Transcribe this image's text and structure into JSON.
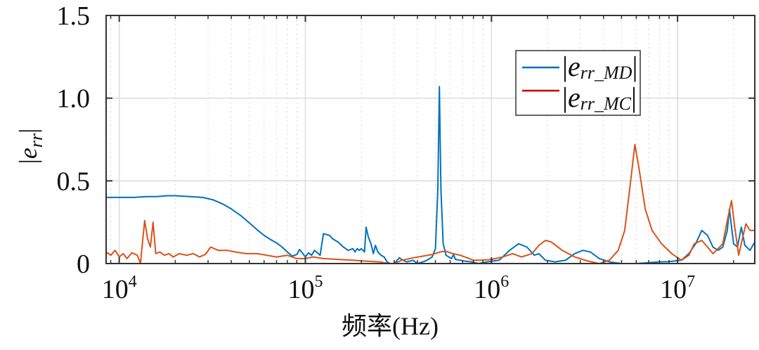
{
  "chart_data": {
    "type": "line",
    "title": "",
    "xlabel": "频率(Hz)",
    "ylabel": "|e_rr|",
    "xscale": "log",
    "xlim": [
      8500,
      26000000
    ],
    "ylim": [
      0,
      1.5
    ],
    "grid": true,
    "legend_position": "upper right (inset)",
    "x_ticks": [
      {
        "value": 10000,
        "base": "10",
        "exp": "4"
      },
      {
        "value": 100000,
        "base": "10",
        "exp": "5"
      },
      {
        "value": 1000000,
        "base": "10",
        "exp": "6"
      },
      {
        "value": 10000000,
        "base": "10",
        "exp": "7"
      }
    ],
    "y_ticks": [
      {
        "value": 0,
        "label": "0"
      },
      {
        "value": 0.5,
        "label": "0.5"
      },
      {
        "value": 1.0,
        "label": "1.0"
      },
      {
        "value": 1.5,
        "label": "1.5"
      }
    ],
    "series": [
      {
        "name": "|e_rr_MD|",
        "legend_main": "e",
        "legend_sub": "rr_MD",
        "color": "#0072BD",
        "points": [
          [
            8500,
            0.4
          ],
          [
            10000,
            0.4
          ],
          [
            12000,
            0.4
          ],
          [
            14000,
            0.405
          ],
          [
            16000,
            0.405
          ],
          [
            18000,
            0.41
          ],
          [
            20000,
            0.41
          ],
          [
            24000,
            0.405
          ],
          [
            28000,
            0.4
          ],
          [
            32000,
            0.385
          ],
          [
            36000,
            0.36
          ],
          [
            40000,
            0.33
          ],
          [
            45000,
            0.29
          ],
          [
            50000,
            0.245
          ],
          [
            55000,
            0.205
          ],
          [
            60000,
            0.17
          ],
          [
            65000,
            0.145
          ],
          [
            70000,
            0.125
          ],
          [
            75000,
            0.1
          ],
          [
            80000,
            0.07
          ],
          [
            85000,
            0.045
          ],
          [
            90000,
            0.055
          ],
          [
            93000,
            0.085
          ],
          [
            97000,
            0.06
          ],
          [
            100000,
            0.04
          ],
          [
            104000,
            0.065
          ],
          [
            108000,
            0.05
          ],
          [
            112000,
            0.08
          ],
          [
            116000,
            0.065
          ],
          [
            120000,
            0.05
          ],
          [
            125000,
            0.18
          ],
          [
            130000,
            0.175
          ],
          [
            135000,
            0.17
          ],
          [
            140000,
            0.15
          ],
          [
            145000,
            0.14
          ],
          [
            150000,
            0.13
          ],
          [
            160000,
            0.1
          ],
          [
            170000,
            0.08
          ],
          [
            180000,
            0.09
          ],
          [
            185000,
            0.07
          ],
          [
            190000,
            0.09
          ],
          [
            195000,
            0.08
          ],
          [
            200000,
            0.09
          ],
          [
            208000,
            0.07
          ],
          [
            212000,
            0.22
          ],
          [
            218000,
            0.16
          ],
          [
            225000,
            0.12
          ],
          [
            232000,
            0.06
          ],
          [
            238000,
            0.11
          ],
          [
            245000,
            0.07
          ],
          [
            255000,
            0.05
          ],
          [
            265000,
            0.04
          ],
          [
            275000,
            0.01
          ],
          [
            285000,
            0.0
          ],
          [
            300000,
            0.0
          ],
          [
            320000,
            0.035
          ],
          [
            335000,
            0.02
          ],
          [
            350000,
            0.01
          ],
          [
            380000,
            0.02
          ],
          [
            400000,
            0.0
          ],
          [
            430000,
            0.01
          ],
          [
            450000,
            0.02
          ],
          [
            480000,
            0.04
          ],
          [
            500000,
            0.09
          ],
          [
            515000,
            0.45
          ],
          [
            525000,
            1.07
          ],
          [
            535000,
            0.45
          ],
          [
            550000,
            0.12
          ],
          [
            570000,
            0.05
          ],
          [
            590000,
            0.04
          ],
          [
            610000,
            0.03
          ],
          [
            625000,
            0.055
          ],
          [
            640000,
            0.025
          ],
          [
            680000,
            0.02
          ],
          [
            720000,
            0.015
          ],
          [
            780000,
            0.01
          ],
          [
            850000,
            0.0
          ],
          [
            950000,
            0.01
          ],
          [
            1100000,
            0.02
          ],
          [
            1250000,
            0.08
          ],
          [
            1400000,
            0.12
          ],
          [
            1550000,
            0.1
          ],
          [
            1700000,
            0.05
          ],
          [
            1800000,
            0.06
          ],
          [
            1950000,
            0.02
          ],
          [
            2200000,
            0.01
          ],
          [
            2500000,
            0.02
          ],
          [
            2800000,
            0.06
          ],
          [
            3100000,
            0.08
          ],
          [
            3400000,
            0.07
          ],
          [
            3800000,
            0.03
          ],
          [
            4300000,
            0.01
          ],
          [
            5000000,
            0.0
          ],
          [
            6000000,
            0.0
          ],
          [
            7000000,
            0.005
          ],
          [
            8000000,
            0.01
          ],
          [
            9000000,
            0.012
          ],
          [
            10500000,
            0.02
          ],
          [
            11500000,
            0.06
          ],
          [
            12500000,
            0.12
          ],
          [
            13500000,
            0.2
          ],
          [
            14500000,
            0.17
          ],
          [
            15500000,
            0.1
          ],
          [
            16500000,
            0.08
          ],
          [
            17500000,
            0.1
          ],
          [
            18500000,
            0.2
          ],
          [
            19000000,
            0.33
          ],
          [
            20000000,
            0.12
          ],
          [
            21000000,
            0.1
          ],
          [
            22000000,
            0.22
          ],
          [
            23000000,
            0.11
          ],
          [
            24500000,
            0.08
          ],
          [
            26000000,
            0.13
          ]
        ]
      },
      {
        "name": "|e_rr_MC|",
        "legend_main": "e",
        "legend_sub": "rr_MC",
        "color": "#D95319",
        "legend_swatch_color": "#C00000",
        "points": [
          [
            8500,
            0.07
          ],
          [
            9000,
            0.05
          ],
          [
            9500,
            0.08
          ],
          [
            10000,
            0.04
          ],
          [
            10500,
            0.06
          ],
          [
            11000,
            0.03
          ],
          [
            11700,
            0.065
          ],
          [
            12500,
            0.05
          ],
          [
            13200,
            0.08
          ],
          [
            13700,
            0.26
          ],
          [
            14200,
            0.15
          ],
          [
            14700,
            0.1
          ],
          [
            15200,
            0.25
          ],
          [
            15700,
            0.06
          ],
          [
            16500,
            0.07
          ],
          [
            17500,
            0.05
          ],
          [
            18500,
            0.06
          ],
          [
            19500,
            0.04
          ],
          [
            21000,
            0.06
          ],
          [
            23000,
            0.05
          ],
          [
            25000,
            0.06
          ],
          [
            27000,
            0.04
          ],
          [
            29000,
            0.055
          ],
          [
            31000,
            0.1
          ],
          [
            34000,
            0.08
          ],
          [
            38000,
            0.08
          ],
          [
            42000,
            0.07
          ],
          [
            48000,
            0.06
          ],
          [
            55000,
            0.06
          ],
          [
            62000,
            0.05
          ],
          [
            70000,
            0.04
          ],
          [
            80000,
            0.05
          ],
          [
            90000,
            0.03
          ],
          [
            100000,
            0.03
          ],
          [
            110000,
            0.04
          ],
          [
            125000,
            0.03
          ],
          [
            150000,
            0.025
          ],
          [
            180000,
            0.02
          ],
          [
            210000,
            0.015
          ],
          [
            250000,
            0.01
          ],
          [
            280000,
            0.0
          ],
          [
            300000,
            0.0
          ],
          [
            330000,
            0.02
          ],
          [
            380000,
            0.035
          ],
          [
            430000,
            0.045
          ],
          [
            480000,
            0.055
          ],
          [
            530000,
            0.07
          ],
          [
            570000,
            0.075
          ],
          [
            620000,
            0.06
          ],
          [
            680000,
            0.05
          ],
          [
            740000,
            0.035
          ],
          [
            800000,
            0.02
          ],
          [
            880000,
            0.02
          ],
          [
            1000000,
            0.025
          ],
          [
            1150000,
            0.04
          ],
          [
            1300000,
            0.06
          ],
          [
            1450000,
            0.04
          ],
          [
            1650000,
            0.06
          ],
          [
            1800000,
            0.11
          ],
          [
            1950000,
            0.14
          ],
          [
            2100000,
            0.13
          ],
          [
            2400000,
            0.08
          ],
          [
            2800000,
            0.04
          ],
          [
            3300000,
            0.015
          ],
          [
            3800000,
            0.0
          ],
          [
            4300000,
            0.02
          ],
          [
            4800000,
            0.08
          ],
          [
            5200000,
            0.2
          ],
          [
            5600000,
            0.5
          ],
          [
            5900000,
            0.72
          ],
          [
            6200000,
            0.58
          ],
          [
            6700000,
            0.33
          ],
          [
            7300000,
            0.2
          ],
          [
            8200000,
            0.12
          ],
          [
            9300000,
            0.06
          ],
          [
            10500000,
            0.02
          ],
          [
            11500000,
            0.05
          ],
          [
            12300000,
            0.12
          ],
          [
            13000,
            0.0
          ],
          [
            13500000,
            0.14
          ],
          [
            14500000,
            0.1
          ],
          [
            15500000,
            0.06
          ],
          [
            16500000,
            0.09
          ],
          [
            17500000,
            0.12
          ],
          [
            18500000,
            0.26
          ],
          [
            19500000,
            0.38
          ],
          [
            20300000,
            0.22
          ],
          [
            21300000,
            0.05
          ],
          [
            22300000,
            0.15
          ],
          [
            23300000,
            0.24
          ],
          [
            24500000,
            0.2
          ],
          [
            26000000,
            0.2
          ]
        ]
      }
    ]
  }
}
